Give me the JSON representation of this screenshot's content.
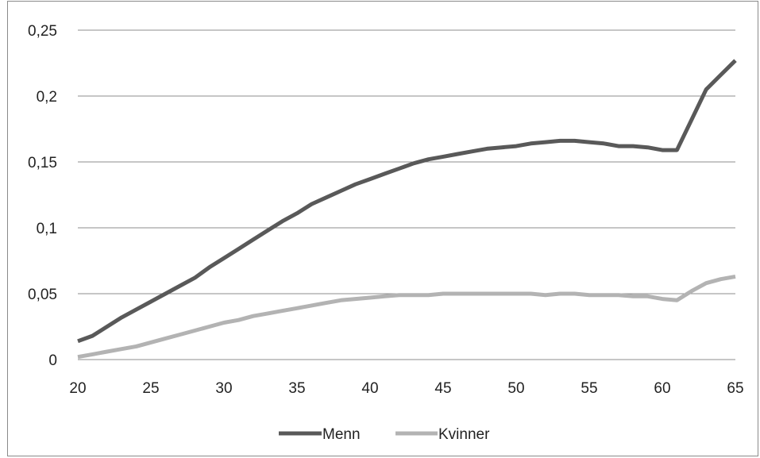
{
  "chart_data": {
    "type": "line",
    "title": "",
    "xlabel": "",
    "ylabel": "",
    "xlim": [
      20,
      65
    ],
    "ylim": [
      0,
      0.25
    ],
    "x_ticks": [
      20,
      25,
      30,
      35,
      40,
      45,
      50,
      55,
      60,
      65
    ],
    "x_tick_labels": [
      "20",
      "25",
      "30",
      "35",
      "40",
      "45",
      "50",
      "55",
      "60",
      "65"
    ],
    "y_ticks": [
      0,
      0.05,
      0.1,
      0.15,
      0.2,
      0.25
    ],
    "y_tick_labels": [
      "0",
      "0,05",
      "0,1",
      "0,15",
      "0,2",
      "0,25"
    ],
    "grid": true,
    "legend_position": "bottom",
    "x": [
      20,
      21,
      22,
      23,
      24,
      25,
      26,
      27,
      28,
      29,
      30,
      31,
      32,
      33,
      34,
      35,
      36,
      37,
      38,
      39,
      40,
      41,
      42,
      43,
      44,
      45,
      46,
      47,
      48,
      49,
      50,
      51,
      52,
      53,
      54,
      55,
      56,
      57,
      58,
      59,
      60,
      61,
      62,
      63,
      64,
      65
    ],
    "series": [
      {
        "name": "Menn",
        "color": "#595959",
        "values": [
          0.014,
          0.018,
          0.025,
          0.032,
          0.038,
          0.044,
          0.05,
          0.056,
          0.062,
          0.07,
          0.077,
          0.084,
          0.091,
          0.098,
          0.105,
          0.111,
          0.118,
          0.123,
          0.128,
          0.133,
          0.137,
          0.141,
          0.145,
          0.149,
          0.152,
          0.154,
          0.156,
          0.158,
          0.16,
          0.161,
          0.162,
          0.164,
          0.165,
          0.166,
          0.166,
          0.165,
          0.164,
          0.162,
          0.162,
          0.161,
          0.159,
          0.159,
          0.182,
          0.205,
          0.216,
          0.227
        ]
      },
      {
        "name": "Kvinner",
        "color": "#b3b3b3",
        "values": [
          0.002,
          0.004,
          0.006,
          0.008,
          0.01,
          0.013,
          0.016,
          0.019,
          0.022,
          0.025,
          0.028,
          0.03,
          0.033,
          0.035,
          0.037,
          0.039,
          0.041,
          0.043,
          0.045,
          0.046,
          0.047,
          0.048,
          0.049,
          0.049,
          0.049,
          0.05,
          0.05,
          0.05,
          0.05,
          0.05,
          0.05,
          0.05,
          0.049,
          0.05,
          0.05,
          0.049,
          0.049,
          0.049,
          0.048,
          0.048,
          0.046,
          0.045,
          0.052,
          0.058,
          0.061,
          0.063
        ]
      }
    ]
  }
}
